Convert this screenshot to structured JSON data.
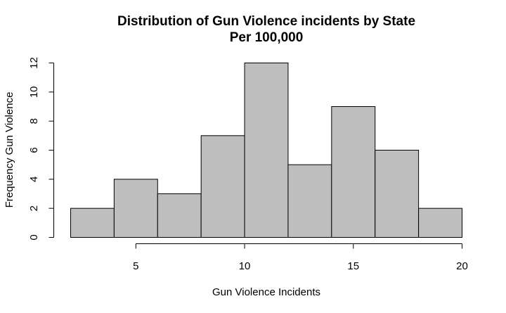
{
  "chart_data": {
    "type": "bar",
    "title": "Distribution of Gun Violence incidents by State",
    "subtitle": "Per 100,000",
    "xlabel": "Gun Violence Incidents",
    "ylabel": "Frequency Gun Violence",
    "bins": [
      {
        "start": 2,
        "end": 4,
        "count": 2
      },
      {
        "start": 4,
        "end": 6,
        "count": 4
      },
      {
        "start": 6,
        "end": 8,
        "count": 3
      },
      {
        "start": 8,
        "end": 10,
        "count": 7
      },
      {
        "start": 10,
        "end": 12,
        "count": 12
      },
      {
        "start": 12,
        "end": 14,
        "count": 5
      },
      {
        "start": 14,
        "end": 16,
        "count": 9
      },
      {
        "start": 16,
        "end": 18,
        "count": 6
      },
      {
        "start": 18,
        "end": 20,
        "count": 2
      }
    ],
    "xticks": [
      "5",
      "10",
      "15",
      "20"
    ],
    "yticks": [
      "0",
      "2",
      "4",
      "6",
      "8",
      "10",
      "12"
    ],
    "xlim": [
      2,
      20
    ],
    "ylim": [
      0,
      12
    ],
    "bar_color": "#bebebe",
    "grid": false
  }
}
